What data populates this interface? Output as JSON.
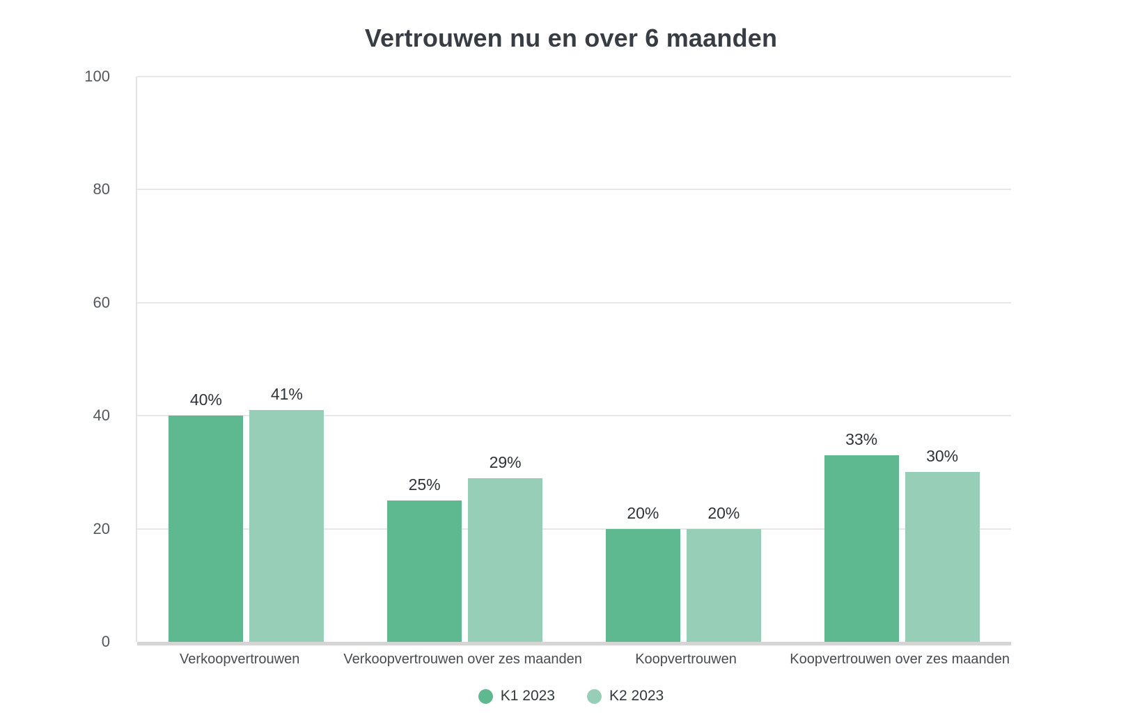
{
  "colors": {
    "k1_green": "#5eb890",
    "k2_green": "#97ceb7",
    "gridline": "#e7e7e7",
    "axis_line": "#d5d5d5",
    "title_text": "#383d43",
    "tick_text": "#54585c",
    "bar_label_text": "#2e3338"
  },
  "chart_data": {
    "type": "bar",
    "title": "Vertrouwen nu en over 6 maanden",
    "categories": [
      "Verkoopvertrouwen",
      "Verkoopvertrouwen over zes maanden",
      "Koopvertrouwen",
      "Koopvertrouwen over zes maanden"
    ],
    "series": [
      {
        "name": "K1 2023",
        "color": "#5eb890",
        "values": [
          40,
          25,
          20,
          33
        ]
      },
      {
        "name": "K2 2023",
        "color": "#97ceb7",
        "values": [
          41,
          29,
          20,
          30
        ]
      }
    ],
    "data_labels": [
      [
        "40%",
        "25%",
        "20%",
        "33%"
      ],
      [
        "41%",
        "29%",
        "20%",
        "30%"
      ]
    ],
    "value_suffix": "%",
    "xlabel": "",
    "ylabel": "",
    "ylim": [
      0,
      100
    ],
    "yticks": [
      0,
      20,
      40,
      60,
      80,
      100
    ],
    "grid": "horizontal",
    "legend_position": "bottom",
    "legend_items": [
      "K1 2023",
      "K2 2023"
    ]
  }
}
